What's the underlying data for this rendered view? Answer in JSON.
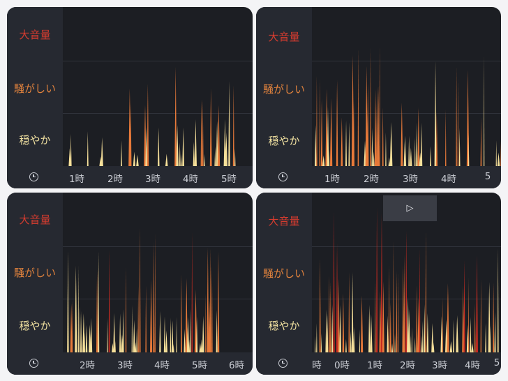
{
  "levels": {
    "loud": "大音量",
    "noisy": "騒がしい",
    "quiet": "穏やか"
  },
  "panels": [
    {
      "ticks": [
        "1時",
        "2時",
        "3時",
        "4時",
        "5時"
      ]
    },
    {
      "ticks": [
        "1時",
        "2時",
        "3時",
        "4時",
        "5"
      ]
    },
    {
      "ticks": [
        "2時",
        "3時",
        "4時",
        "5時",
        "6時"
      ]
    },
    {
      "ticks": [
        "時",
        "0時",
        "1時",
        "2時",
        "3時",
        "4時",
        "5"
      ],
      "play_icon": "▷"
    }
  ],
  "colors": {
    "loud": "#c62b22",
    "noisy": "#e87a3a",
    "quiet": "#f6e09a",
    "background": "#1c1e23"
  }
}
